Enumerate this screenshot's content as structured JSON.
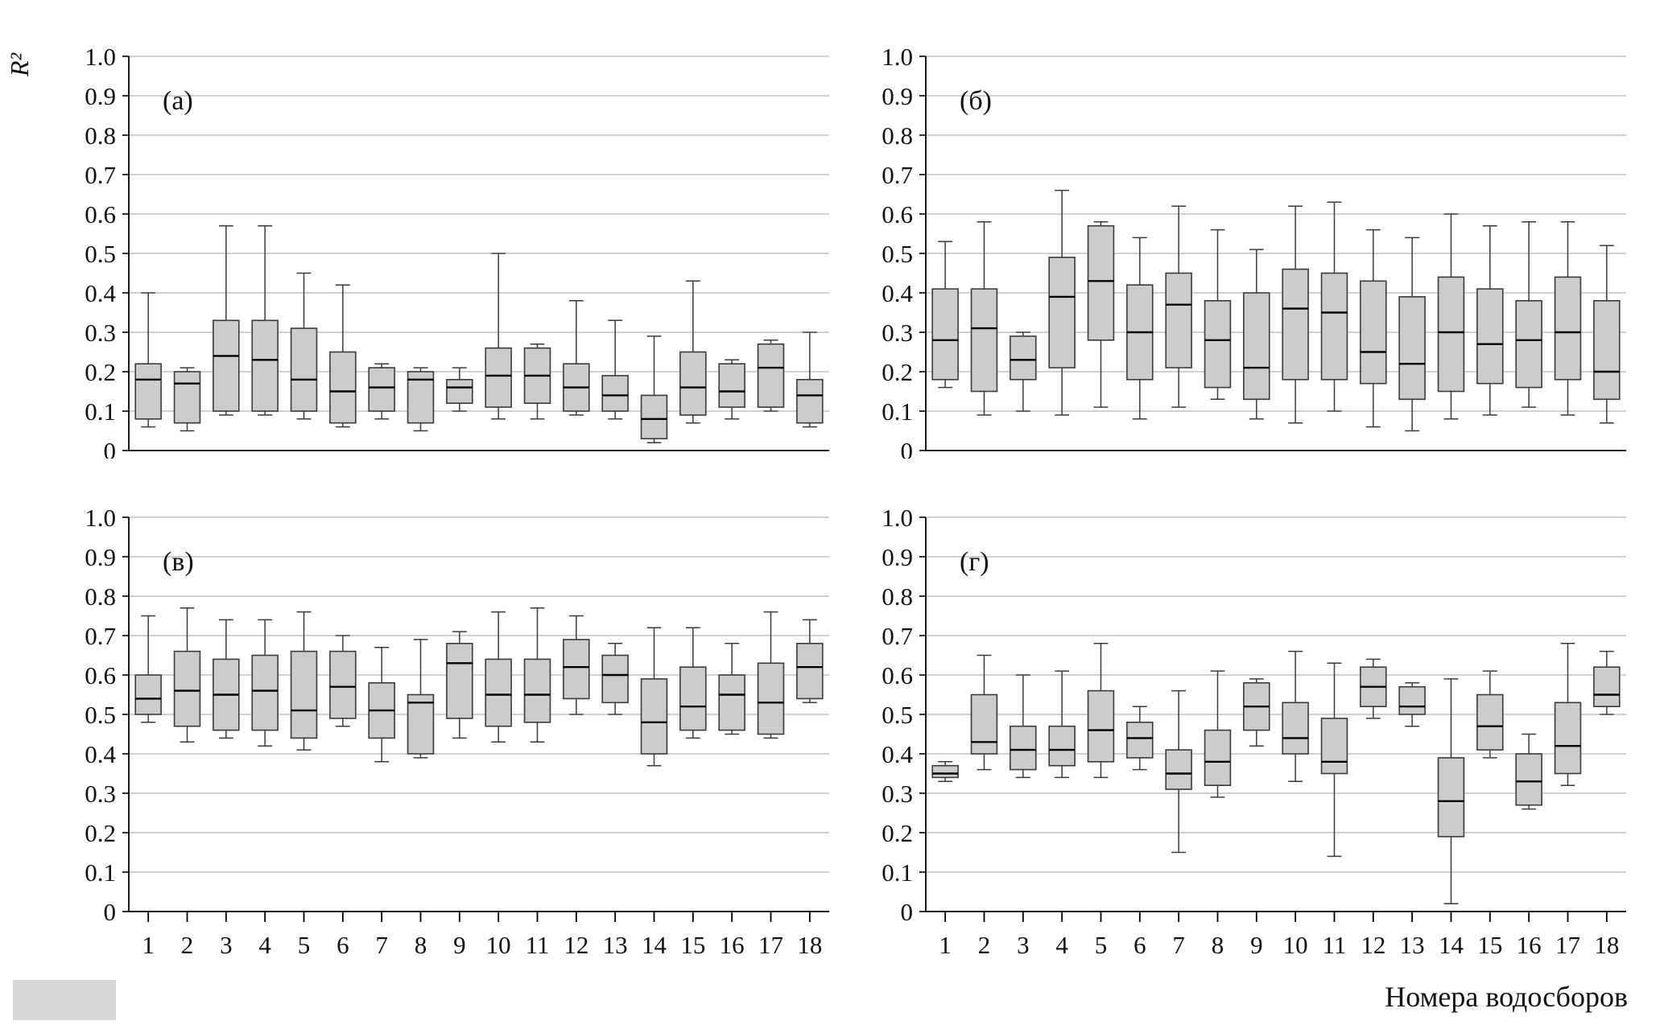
{
  "figure": {
    "ylabel": "R²",
    "xlabel": "Номера водосборов"
  },
  "chart_data": {
    "type": "boxplot",
    "meta": {
      "ylim": [
        0,
        1
      ],
      "yticks": [
        "0",
        "0.1",
        "0.2",
        "0.3",
        "0.4",
        "0.5",
        "0.6",
        "0.7",
        "0.8",
        "0.9",
        "1.0"
      ],
      "categories": [
        "1",
        "2",
        "3",
        "4",
        "5",
        "6",
        "7",
        "8",
        "9",
        "10",
        "11",
        "12",
        "13",
        "14",
        "15",
        "16",
        "17",
        "18"
      ],
      "ylabel": "R²",
      "xlabel": "Номера водосборов",
      "grid": true,
      "legend": false,
      "box_values_order": [
        "whisker_low",
        "q1",
        "median",
        "q3",
        "whisker_high"
      ],
      "colors": {
        "box_fill": "#cccccc",
        "box_stroke": "#3a3a3a",
        "median": "#000000",
        "grid": "#a0a0a0",
        "axis": "#000000",
        "background": "#ffffff"
      }
    },
    "panels": [
      {
        "label": "(а)",
        "show_x": false,
        "boxes": [
          [
            0.06,
            0.08,
            0.18,
            0.22,
            0.4
          ],
          [
            0.05,
            0.07,
            0.17,
            0.2,
            0.21
          ],
          [
            0.09,
            0.1,
            0.24,
            0.33,
            0.57
          ],
          [
            0.09,
            0.1,
            0.23,
            0.33,
            0.57
          ],
          [
            0.08,
            0.1,
            0.18,
            0.31,
            0.45
          ],
          [
            0.06,
            0.07,
            0.15,
            0.25,
            0.42
          ],
          [
            0.08,
            0.1,
            0.16,
            0.21,
            0.22
          ],
          [
            0.05,
            0.07,
            0.18,
            0.2,
            0.21
          ],
          [
            0.1,
            0.12,
            0.16,
            0.18,
            0.21
          ],
          [
            0.08,
            0.11,
            0.19,
            0.26,
            0.5
          ],
          [
            0.08,
            0.12,
            0.19,
            0.26,
            0.27
          ],
          [
            0.09,
            0.1,
            0.16,
            0.22,
            0.38
          ],
          [
            0.08,
            0.1,
            0.14,
            0.19,
            0.33
          ],
          [
            0.02,
            0.03,
            0.08,
            0.14,
            0.29
          ],
          [
            0.07,
            0.09,
            0.16,
            0.25,
            0.43
          ],
          [
            0.08,
            0.11,
            0.15,
            0.22,
            0.23
          ],
          [
            0.1,
            0.11,
            0.21,
            0.27,
            0.28
          ],
          [
            0.06,
            0.07,
            0.14,
            0.18,
            0.3
          ]
        ]
      },
      {
        "label": "(б)",
        "show_x": false,
        "boxes": [
          [
            0.16,
            0.18,
            0.28,
            0.41,
            0.53
          ],
          [
            0.09,
            0.15,
            0.31,
            0.41,
            0.58
          ],
          [
            0.1,
            0.18,
            0.23,
            0.29,
            0.3
          ],
          [
            0.09,
            0.21,
            0.39,
            0.49,
            0.66
          ],
          [
            0.11,
            0.28,
            0.43,
            0.57,
            0.58
          ],
          [
            0.08,
            0.18,
            0.3,
            0.42,
            0.54
          ],
          [
            0.11,
            0.21,
            0.37,
            0.45,
            0.62
          ],
          [
            0.13,
            0.16,
            0.28,
            0.38,
            0.56
          ],
          [
            0.08,
            0.13,
            0.21,
            0.4,
            0.51
          ],
          [
            0.07,
            0.18,
            0.36,
            0.46,
            0.62
          ],
          [
            0.1,
            0.18,
            0.35,
            0.45,
            0.63
          ],
          [
            0.06,
            0.17,
            0.25,
            0.43,
            0.56
          ],
          [
            0.05,
            0.13,
            0.22,
            0.39,
            0.54
          ],
          [
            0.08,
            0.15,
            0.3,
            0.44,
            0.6
          ],
          [
            0.09,
            0.17,
            0.27,
            0.41,
            0.57
          ],
          [
            0.11,
            0.16,
            0.28,
            0.38,
            0.58
          ],
          [
            0.09,
            0.18,
            0.3,
            0.44,
            0.58
          ],
          [
            0.07,
            0.13,
            0.2,
            0.38,
            0.52
          ]
        ]
      },
      {
        "label": "(в)",
        "show_x": true,
        "boxes": [
          [
            0.48,
            0.5,
            0.54,
            0.6,
            0.75
          ],
          [
            0.43,
            0.47,
            0.56,
            0.66,
            0.77
          ],
          [
            0.44,
            0.46,
            0.55,
            0.64,
            0.74
          ],
          [
            0.42,
            0.46,
            0.56,
            0.65,
            0.74
          ],
          [
            0.41,
            0.44,
            0.51,
            0.66,
            0.76
          ],
          [
            0.47,
            0.49,
            0.57,
            0.66,
            0.7
          ],
          [
            0.38,
            0.44,
            0.51,
            0.58,
            0.67
          ],
          [
            0.39,
            0.4,
            0.53,
            0.55,
            0.69
          ],
          [
            0.44,
            0.49,
            0.63,
            0.68,
            0.71
          ],
          [
            0.43,
            0.47,
            0.55,
            0.64,
            0.76
          ],
          [
            0.43,
            0.48,
            0.55,
            0.64,
            0.77
          ],
          [
            0.5,
            0.54,
            0.62,
            0.69,
            0.75
          ],
          [
            0.5,
            0.53,
            0.6,
            0.65,
            0.68
          ],
          [
            0.37,
            0.4,
            0.48,
            0.59,
            0.72
          ],
          [
            0.44,
            0.46,
            0.52,
            0.62,
            0.72
          ],
          [
            0.45,
            0.46,
            0.55,
            0.6,
            0.68
          ],
          [
            0.44,
            0.45,
            0.53,
            0.63,
            0.76
          ],
          [
            0.53,
            0.54,
            0.62,
            0.68,
            0.74
          ]
        ]
      },
      {
        "label": "(г)",
        "show_x": true,
        "boxes": [
          [
            0.33,
            0.34,
            0.35,
            0.37,
            0.38
          ],
          [
            0.36,
            0.4,
            0.43,
            0.55,
            0.65
          ],
          [
            0.34,
            0.36,
            0.41,
            0.47,
            0.6
          ],
          [
            0.34,
            0.37,
            0.41,
            0.47,
            0.61
          ],
          [
            0.34,
            0.38,
            0.46,
            0.56,
            0.68
          ],
          [
            0.36,
            0.39,
            0.44,
            0.48,
            0.52
          ],
          [
            0.15,
            0.31,
            0.35,
            0.41,
            0.56
          ],
          [
            0.29,
            0.32,
            0.38,
            0.46,
            0.61
          ],
          [
            0.42,
            0.46,
            0.52,
            0.58,
            0.59
          ],
          [
            0.33,
            0.4,
            0.44,
            0.53,
            0.66
          ],
          [
            0.14,
            0.35,
            0.38,
            0.49,
            0.63
          ],
          [
            0.49,
            0.52,
            0.57,
            0.62,
            0.64
          ],
          [
            0.47,
            0.5,
            0.52,
            0.57,
            0.58
          ],
          [
            0.02,
            0.19,
            0.28,
            0.39,
            0.59
          ],
          [
            0.39,
            0.41,
            0.47,
            0.55,
            0.61
          ],
          [
            0.26,
            0.27,
            0.33,
            0.4,
            0.45
          ],
          [
            0.32,
            0.35,
            0.42,
            0.53,
            0.68
          ],
          [
            0.5,
            0.52,
            0.55,
            0.62,
            0.66
          ]
        ]
      }
    ]
  }
}
